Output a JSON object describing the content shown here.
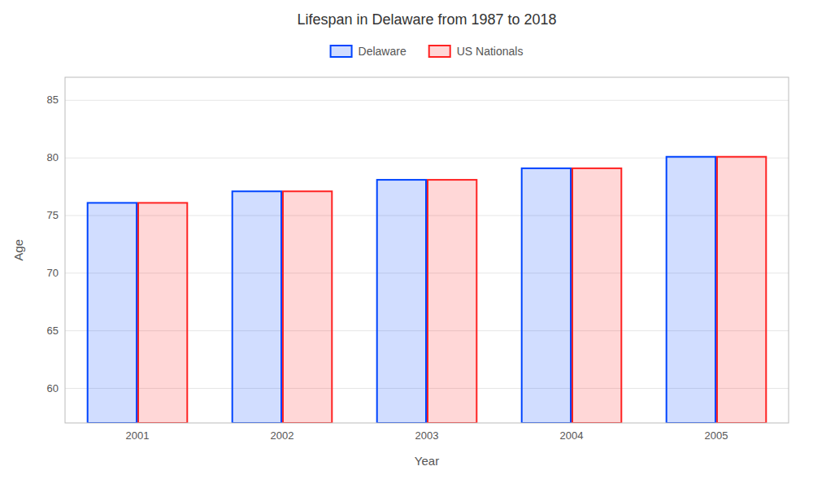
{
  "chart_data": {
    "type": "bar",
    "title": "Lifespan in Delaware from 1987 to 2018",
    "x_label": "Year",
    "y_label": "Age",
    "categories": [
      "2001",
      "2002",
      "2003",
      "2004",
      "2005"
    ],
    "series": [
      {
        "name": "Delaware",
        "color": "#0044ff",
        "values": [
          76.1,
          77.1,
          78.1,
          79.1,
          80.1
        ]
      },
      {
        "name": "US Nationals",
        "color": "#ff2222",
        "values": [
          76.1,
          77.1,
          78.1,
          79.1,
          80.1
        ]
      }
    ],
    "ylim": [
      57,
      87
    ],
    "yticks": [
      60,
      65,
      70,
      75,
      80,
      85
    ],
    "grid": true,
    "legend": "top"
  }
}
